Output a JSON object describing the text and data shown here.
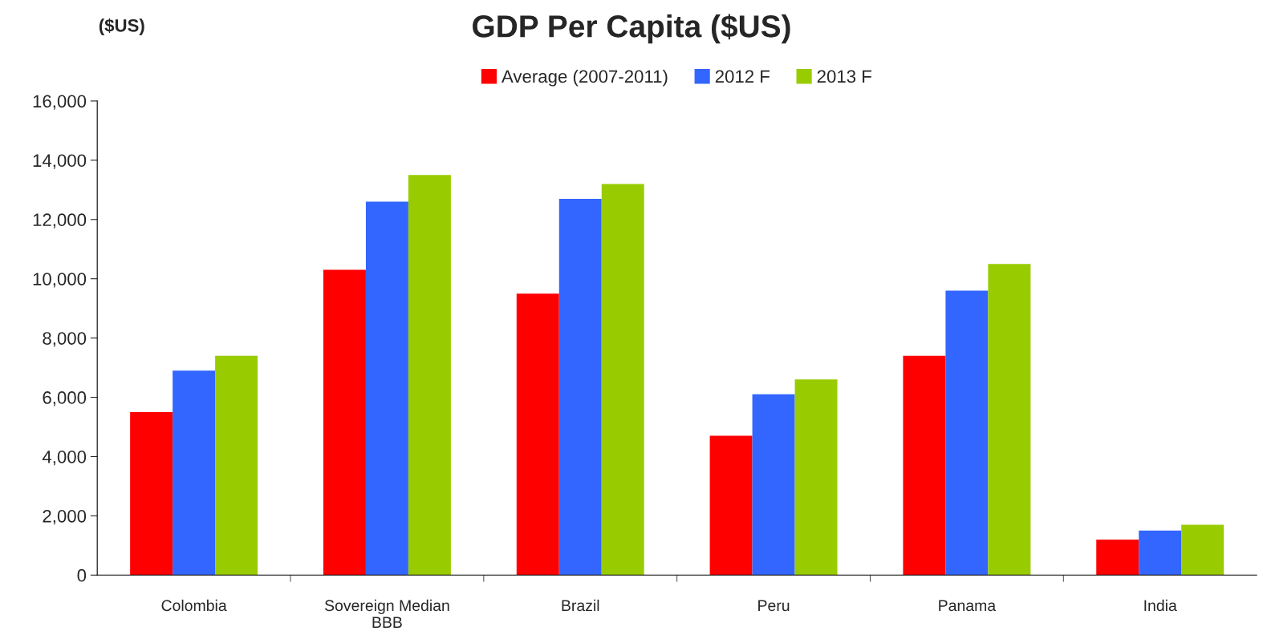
{
  "chart_data": {
    "type": "bar",
    "title": "GDP Per Capita ($US)",
    "ylabel": "($US)",
    "categories": [
      "Colombia",
      "Sovereign Median\nBBB",
      "Brazil",
      "Peru",
      "Panama",
      "India"
    ],
    "series": [
      {
        "name": "Average (2007-2011)",
        "color": "#ff0000",
        "values": [
          5500,
          10300,
          9500,
          4700,
          7400,
          1200
        ]
      },
      {
        "name": "2012 F",
        "color": "#3366ff",
        "values": [
          6900,
          12600,
          12700,
          6100,
          9600,
          1500
        ]
      },
      {
        "name": "2013 F",
        "color": "#99cc00",
        "values": [
          7400,
          13500,
          13200,
          6600,
          10500,
          1700
        ]
      }
    ],
    "ylim": [
      0,
      16000
    ],
    "yticks": [
      {
        "value": 0,
        "label": "0"
      },
      {
        "value": 2000,
        "label": "2,000"
      },
      {
        "value": 4000,
        "label": "4,000"
      },
      {
        "value": 6000,
        "label": "6,000"
      },
      {
        "value": 8000,
        "label": "8,000"
      },
      {
        "value": 10000,
        "label": "10,000"
      },
      {
        "value": 12000,
        "label": "12,000"
      },
      {
        "value": 14000,
        "label": "14,000"
      },
      {
        "value": 16000,
        "label": "16,000"
      }
    ],
    "grid": false,
    "legend": "top"
  }
}
